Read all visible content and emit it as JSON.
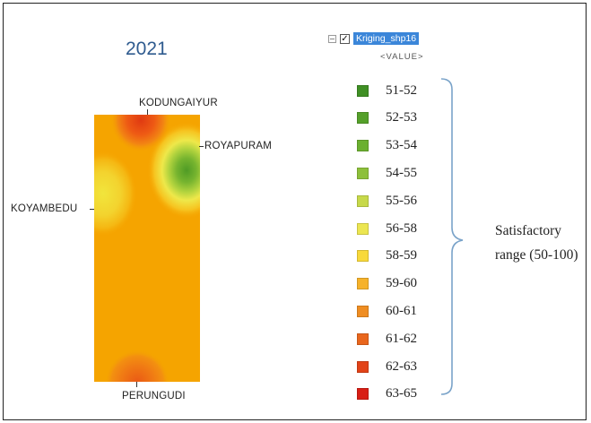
{
  "map": {
    "year": "2021",
    "stations": {
      "north": "KODUNGAIYUR",
      "east": "ROYAPURAM",
      "west": "KOYAMBEDU",
      "south": "PERUNGUDI"
    },
    "colors": {
      "base": "#f5a400",
      "hot_high": "#e03a12",
      "hot_mid": "#f06c12",
      "warm": "#f39010",
      "cool_green": "#4f9b25",
      "cool_light": "#9bc739",
      "cool_yellow": "#f1e53c"
    }
  },
  "legend": {
    "layer_name": "Kriging_shp16",
    "checked": true,
    "field_label": "<VALUE>",
    "items": [
      {
        "label": "51-52",
        "color": "#3f8f24"
      },
      {
        "label": "52-53",
        "color": "#55a02a"
      },
      {
        "label": "53-54",
        "color": "#6bb030"
      },
      {
        "label": "54-55",
        "color": "#8dc03a"
      },
      {
        "label": "55-56",
        "color": "#c7d94a"
      },
      {
        "label": "56-58",
        "color": "#ece651"
      },
      {
        "label": "58-59",
        "color": "#f8d93a"
      },
      {
        "label": "59-60",
        "color": "#f6b22a"
      },
      {
        "label": "60-61",
        "color": "#ef8d22"
      },
      {
        "label": "61-62",
        "color": "#e9661d"
      },
      {
        "label": "62-63",
        "color": "#e24318"
      },
      {
        "label": "63-65",
        "color": "#d81e15"
      }
    ],
    "note_line1": "Satisfactory",
    "note_line2": "range (50-100)"
  }
}
